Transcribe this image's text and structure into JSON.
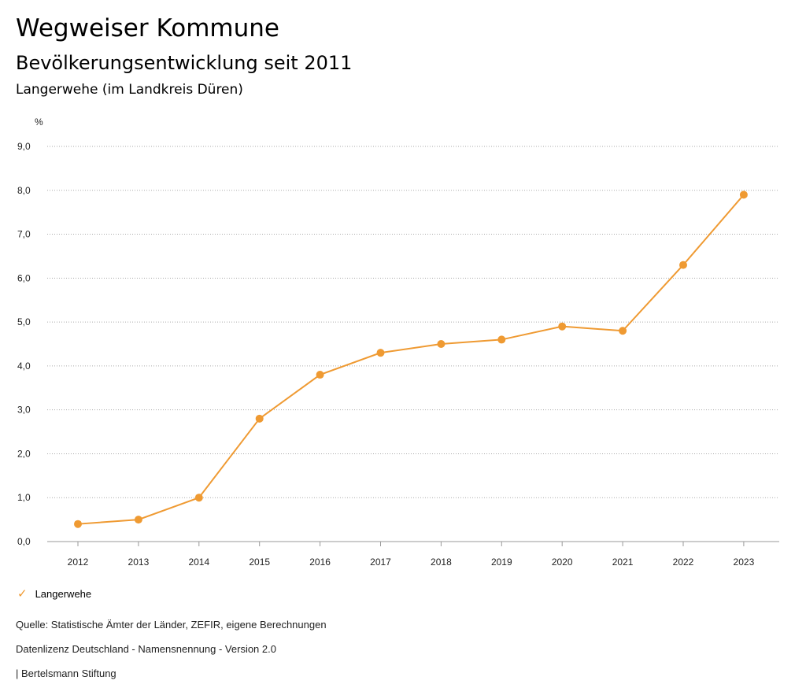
{
  "header": {
    "title": "Wegweiser Kommune",
    "subtitle": "Bevölkerungsentwicklung seit 2011",
    "region": "Langerwehe (im Landkreis Düren)"
  },
  "chart_data": {
    "type": "line",
    "title": "Bevölkerungsentwicklung seit 2011",
    "ylabel": "%",
    "xlabel": "",
    "x": [
      "2012",
      "2013",
      "2014",
      "2015",
      "2016",
      "2017",
      "2018",
      "2019",
      "2020",
      "2021",
      "2022",
      "2023"
    ],
    "series": [
      {
        "name": "Langerwehe",
        "color": "#ef9a32",
        "values": [
          0.4,
          0.5,
          1.0,
          2.8,
          3.8,
          4.3,
          4.5,
          4.6,
          4.9,
          4.8,
          6.3,
          7.9
        ]
      }
    ],
    "ylim": [
      0,
      9
    ],
    "yticks": [
      "0,0",
      "1,0",
      "2,0",
      "3,0",
      "4,0",
      "5,0",
      "6,0",
      "7,0",
      "8,0",
      "9,0"
    ],
    "grid": true,
    "legend": "bottom-left"
  },
  "footer": {
    "source": "Quelle: Statistische Ämter der Länder, ZEFIR, eigene Berechnungen",
    "license": "Datenlizenz Deutschland - Namensnennung - Version 2.0",
    "publisher": "| Bertelsmann Stiftung"
  }
}
